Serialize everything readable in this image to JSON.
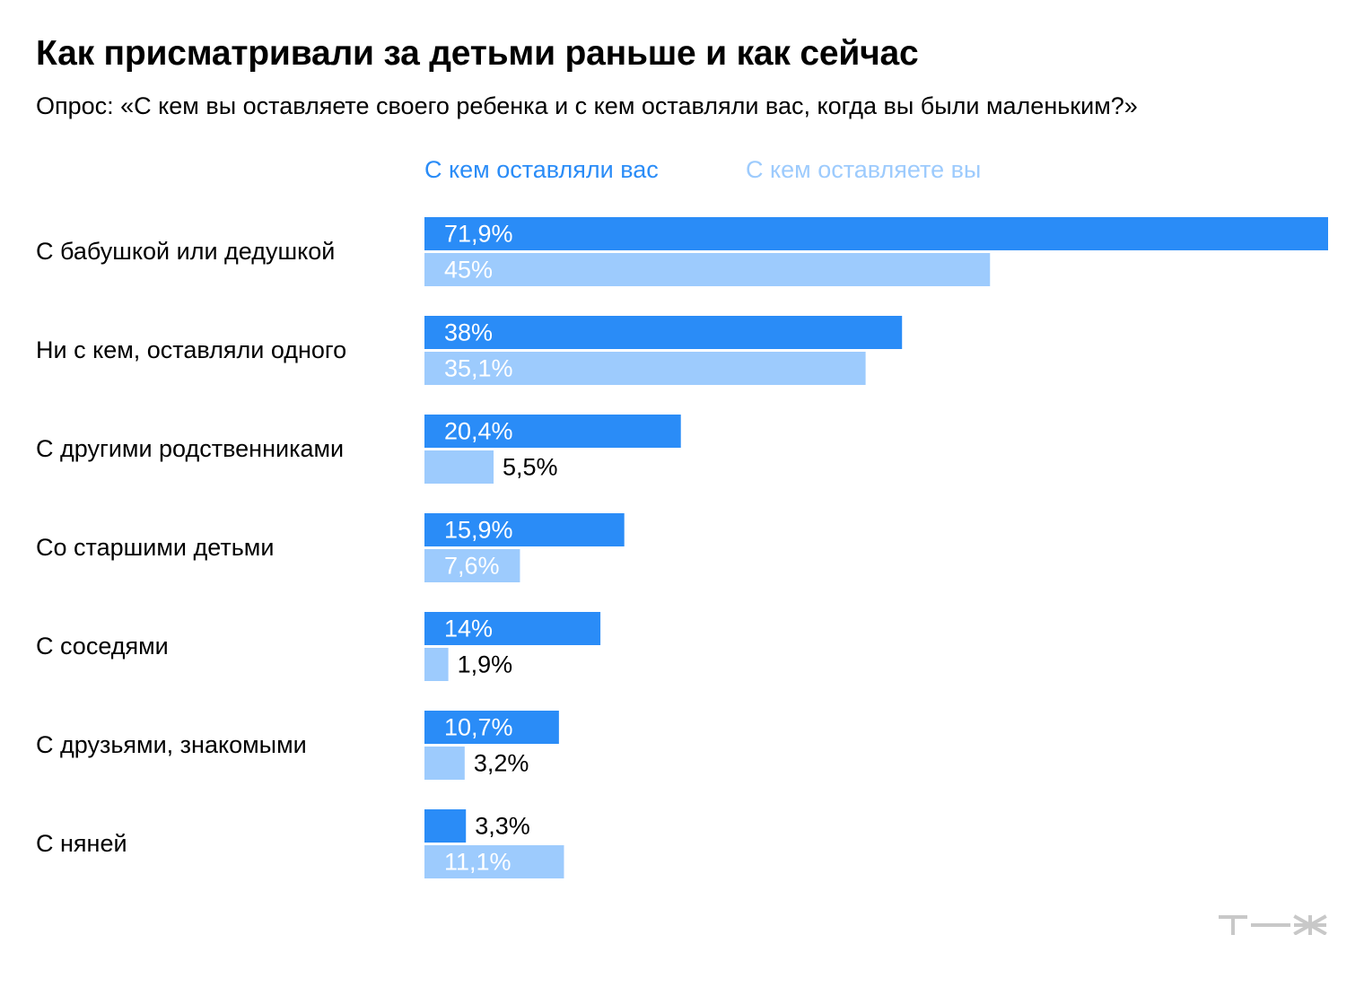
{
  "title": "Как присматривали за детьми раньше и как сейчас",
  "subtitle": "Опрос: «С кем вы оставляете своего ребенка и с кем оставляли вас, когда вы были маленьким?»",
  "colors": {
    "past": "#2a8cf7",
    "now": "#9dcbfd",
    "label_on_bar": "#ffffff",
    "label_outside": "#000000",
    "logo": "#c8c8c8"
  },
  "logo": {
    "text": "т—ж",
    "icon": "tzh-logo-icon"
  },
  "chart_data": {
    "type": "bar",
    "orientation": "horizontal",
    "title": "Как присматривали за детьми раньше и как сейчас",
    "subtitle": "Опрос: «С кем вы оставляете своего ребенка и с кем оставляли вас, когда вы были маленьким?»",
    "legend_position": "top",
    "grid": false,
    "xlim": [
      0,
      71.9
    ],
    "categories": [
      "С бабушкой или дедушкой",
      "Ни с кем, оставляли одного",
      "С другими родственниками",
      "Со старшими детьми",
      "С соседями",
      "С друзьями, знакомыми",
      "С няней"
    ],
    "series": [
      {
        "name": "С кем оставляли вас",
        "values": [
          71.9,
          38,
          20.4,
          15.9,
          14,
          10.7,
          3.3
        ],
        "labels": [
          "71,9%",
          "38%",
          "20,4%",
          "15,9%",
          "14%",
          "10,7%",
          "3,3%"
        ]
      },
      {
        "name": "С кем оставляете вы",
        "values": [
          45,
          35.1,
          5.5,
          7.6,
          1.9,
          3.2,
          11.1
        ],
        "labels": [
          "45%",
          "35,1%",
          "5,5%",
          "7,6%",
          "1,9%",
          "3,2%",
          "11,1%"
        ]
      }
    ]
  }
}
